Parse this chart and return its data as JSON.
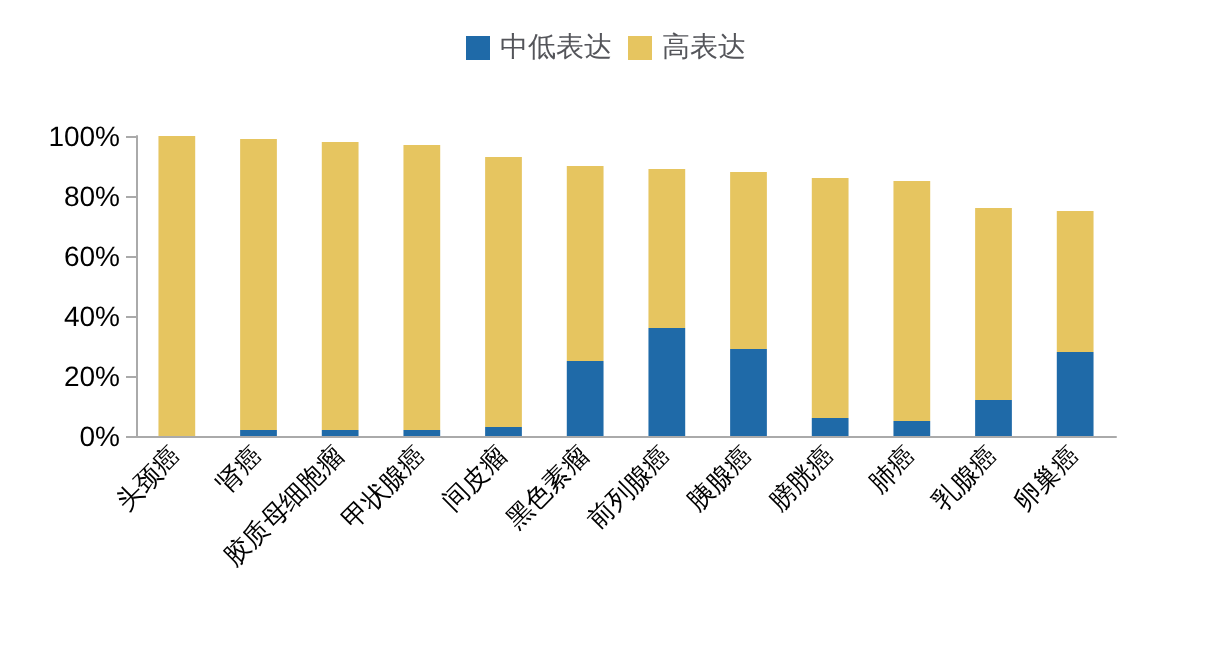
{
  "chart_data": {
    "type": "bar",
    "stacked": true,
    "categories": [
      "头颈癌",
      "肾癌",
      "胶质母细胞瘤",
      "甲状腺癌",
      "间皮瘤",
      "黑色素瘤",
      "前列腺癌",
      "胰腺癌",
      "膀胱癌",
      "肺癌",
      "乳腺癌",
      "卵巢癌"
    ],
    "series": [
      {
        "name": "中低表达",
        "color": "#1f6aa8",
        "values": [
          0,
          2,
          2,
          2,
          3,
          25,
          36,
          29,
          6,
          5,
          12,
          28
        ]
      },
      {
        "name": "高表达",
        "color": "#e6c560",
        "values": [
          100,
          97,
          96,
          95,
          90,
          65,
          53,
          59,
          80,
          80,
          64,
          47
        ]
      }
    ],
    "ylim": [
      0,
      100
    ],
    "yticks": [
      {
        "value": 0,
        "label": "0%"
      },
      {
        "value": 20,
        "label": "20%"
      },
      {
        "value": 40,
        "label": "40%"
      },
      {
        "value": 60,
        "label": "60%"
      },
      {
        "value": 80,
        "label": "80%"
      },
      {
        "value": 100,
        "label": "100%"
      }
    ],
    "grid": false,
    "legend": "top"
  }
}
